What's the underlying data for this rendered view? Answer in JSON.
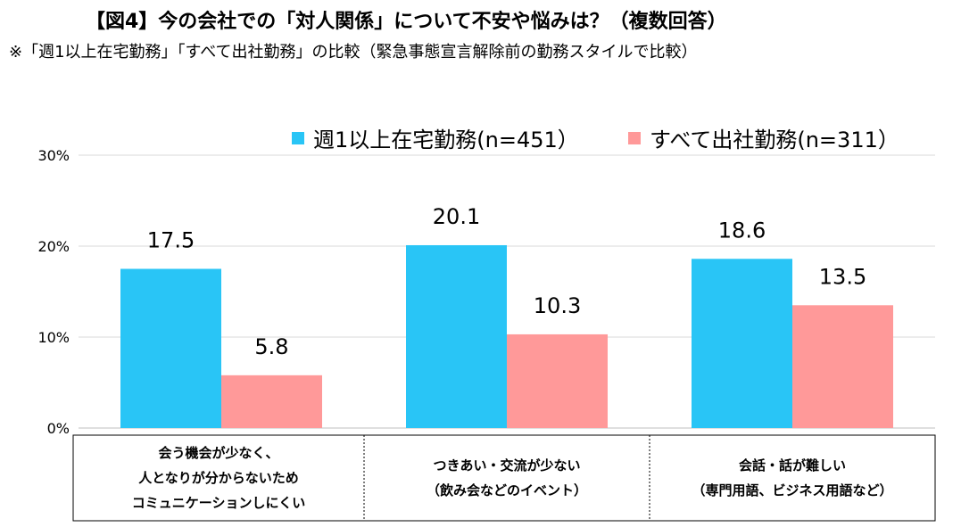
{
  "title": "【図4】今の会社での「対人関係」について不安や悩みは？（複数回答）",
  "subtitle": "※「週1以上在宅勤務」「すべて出社勤務」の比較（緊急事態宣言解除前の勤務スタイルで比較）",
  "chart_data": {
    "type": "bar",
    "categories": [
      "会う機会が少なく、\n人となりが分からないため\nコミュニケーションしにくい",
      "つきあい・交流が少ない\n（飲み会などのイベント）",
      "会話・話が難しい\n（専門用語、ビジネス用語など）"
    ],
    "series": [
      {
        "name": "週1以上在宅勤務(n=451）",
        "color": "#29C5F6",
        "values": [
          17.5,
          20.1,
          18.6
        ]
      },
      {
        "name": "すべて出社勤務(n=311）",
        "color": "#FF9999",
        "values": [
          5.8,
          10.3,
          13.5
        ]
      }
    ],
    "y_ticks": [
      "0%",
      "10%",
      "20%",
      "30%"
    ],
    "ylim": [
      0,
      30
    ],
    "grid": true,
    "legend_position": "top-right"
  }
}
